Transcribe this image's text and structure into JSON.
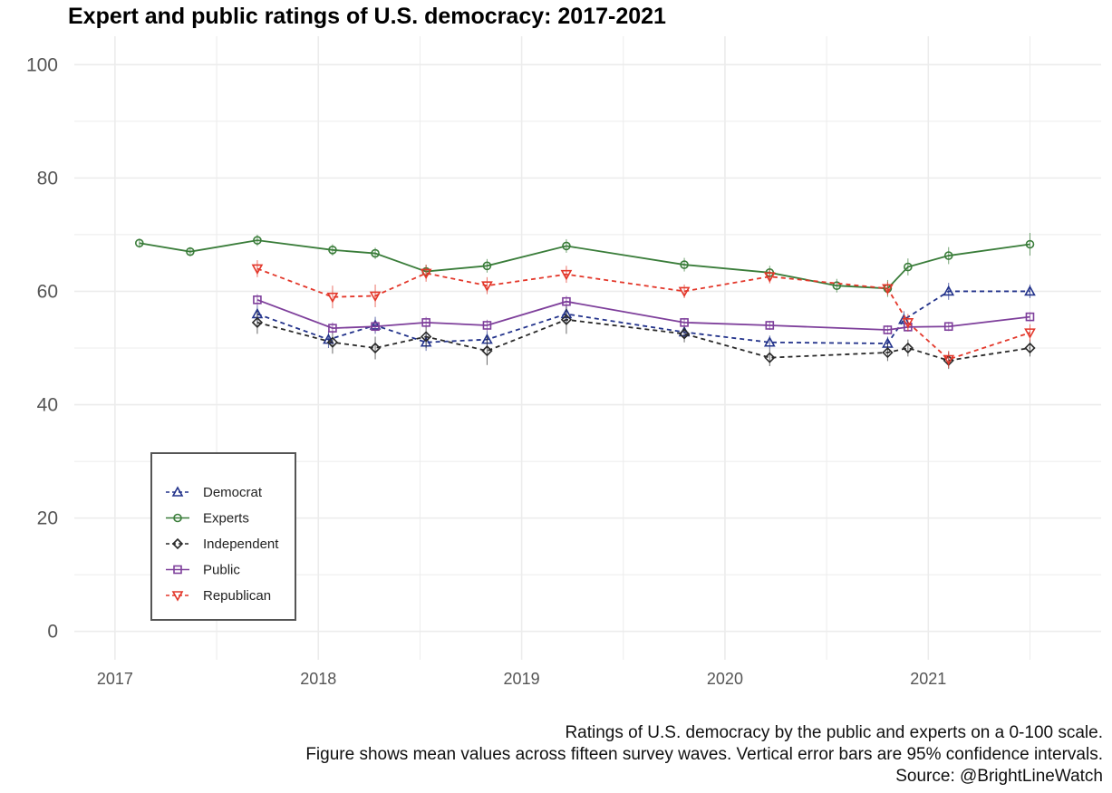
{
  "chart_data": {
    "type": "line",
    "title": "Expert and public ratings of U.S. democracy: 2017-2021",
    "xlabel": "",
    "ylabel": "",
    "ylim": [
      -5,
      105
    ],
    "xlim": [
      2016.8,
      2021.85
    ],
    "yticks": [
      "0",
      "20",
      "40",
      "60",
      "80",
      "100"
    ],
    "xticks": [
      "2017",
      "2018",
      "2019",
      "2020",
      "2021"
    ],
    "grid": true,
    "legend_placement": "bottom-left",
    "series": [
      {
        "name": "Democrat",
        "color": "#23338b",
        "marker": "triangle-up",
        "linestyle": "dashed",
        "x": [
          2017.7,
          2018.05,
          2018.28,
          2018.53,
          2018.83,
          2019.22,
          2019.8,
          2020.22,
          2020.8,
          2020.88,
          2021.1,
          2021.5
        ],
        "y": [
          56,
          51.5,
          54,
          51,
          51.5,
          56,
          52.8,
          51,
          50.8,
          55,
          60,
          60
        ],
        "err": [
          1.5,
          1.5,
          1.5,
          1.5,
          1.5,
          1.5,
          1.2,
          1.2,
          1.2,
          1.5,
          1.5,
          1.2
        ]
      },
      {
        "name": "Experts",
        "color": "#3a7d3a",
        "marker": "circle",
        "linestyle": "solid",
        "x": [
          2017.12,
          2017.37,
          2017.7,
          2018.07,
          2018.28,
          2018.53,
          2018.83,
          2019.22,
          2019.8,
          2020.22,
          2020.55,
          2020.8,
          2020.9,
          2021.1,
          2021.5
        ],
        "y": [
          68.5,
          67,
          69,
          67.3,
          66.7,
          63.5,
          64.5,
          68,
          64.7,
          63.3,
          61,
          60.5,
          64.3,
          66.3,
          68.3
        ],
        "err": [
          0.8,
          0.8,
          1,
          1,
          1,
          1.2,
          1.2,
          1.2,
          1.2,
          1.2,
          1.2,
          1.5,
          1.5,
          1.5,
          2
        ]
      },
      {
        "name": "Independent",
        "color": "#2a2a2a",
        "marker": "diamond",
        "linestyle": "dashed",
        "x": [
          2017.7,
          2018.07,
          2018.28,
          2018.53,
          2018.83,
          2019.22,
          2019.8,
          2020.22,
          2020.8,
          2020.9,
          2021.1,
          2021.5
        ],
        "y": [
          54.5,
          51,
          50,
          52,
          49.5,
          55,
          52.5,
          48.3,
          49.2,
          50,
          47.8,
          50
        ],
        "err": [
          2,
          2,
          2,
          2,
          2.5,
          2.5,
          1.5,
          1.5,
          1.5,
          1.5,
          1.5,
          1.5
        ]
      },
      {
        "name": "Public",
        "color": "#7e3f9b",
        "marker": "square",
        "linestyle": "solid",
        "x": [
          2017.7,
          2018.07,
          2018.28,
          2018.53,
          2018.83,
          2019.22,
          2019.8,
          2020.22,
          2020.8,
          2020.9,
          2021.1,
          2021.5
        ],
        "y": [
          58.5,
          53.5,
          53.8,
          54.5,
          54,
          58.2,
          54.5,
          54,
          53.2,
          53.7,
          53.8,
          55.5
        ],
        "err": [
          1,
          1,
          1,
          1,
          1,
          1,
          0.8,
          0.8,
          0.8,
          0.8,
          0.8,
          0.8
        ]
      },
      {
        "name": "Republican",
        "color": "#e3372a",
        "marker": "triangle-down",
        "linestyle": "dashed",
        "x": [
          2017.7,
          2018.07,
          2018.28,
          2018.53,
          2018.83,
          2019.22,
          2019.8,
          2020.22,
          2020.8,
          2020.9,
          2021.1,
          2021.5
        ],
        "y": [
          64,
          59,
          59.2,
          63.2,
          61,
          63,
          60,
          62.6,
          60.5,
          54.5,
          48,
          52.7
        ],
        "err": [
          1.5,
          2,
          2,
          1.5,
          1.5,
          1.5,
          1.2,
          1.2,
          1.2,
          1.5,
          1.5,
          1.5
        ]
      }
    ]
  },
  "caption": {
    "line1": "Ratings of U.S. democracy by the public and experts on a 0-100 scale.",
    "line2": "Figure shows mean values across fifteen survey waves. Vertical error bars are 95% confidence intervals.",
    "line3": "Source: @BrightLineWatch"
  }
}
